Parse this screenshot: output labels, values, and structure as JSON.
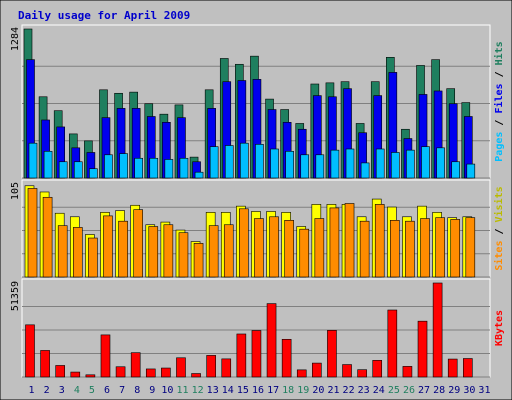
{
  "colors": {
    "background": "#c0c0c0",
    "title": "#0000cc",
    "hits": "#1f7f5f",
    "files": "#0000ee",
    "pages": "#00bfff",
    "visits": "#ffff00",
    "sites": "#ff8c00",
    "kbytes": "#ff0000",
    "weekend_day": "#1f7f5f",
    "weekday": "#000080",
    "grid": "#808080"
  },
  "chart_data": {
    "type": "bar",
    "title": "Daily usage for April 2009",
    "days": [
      "1",
      "2",
      "3",
      "4",
      "5",
      "6",
      "7",
      "8",
      "9",
      "10",
      "11",
      "12",
      "13",
      "14",
      "15",
      "16",
      "17",
      "18",
      "19",
      "20",
      "21",
      "22",
      "23",
      "24",
      "25",
      "26",
      "27",
      "28",
      "29",
      "30",
      "31"
    ],
    "weekend_days": [
      "4",
      "5",
      "11",
      "12",
      "18",
      "19",
      "25",
      "26"
    ],
    "panels": [
      {
        "ymax_label": "1284",
        "ymax": 1284,
        "right_label": {
          "pages": "Pages",
          "sep1": " / ",
          "files": "Files",
          "sep2": " / ",
          "hits": "Hits"
        },
        "series": [
          {
            "name": "Hits",
            "values": [
              1284,
              700,
              580,
              380,
              320,
              760,
              730,
              740,
              640,
              550,
              630,
              180,
              760,
              1030,
              980,
              1050,
              680,
              590,
              470,
              810,
              820,
              830,
              470,
              830,
              1040,
              420,
              970,
              1020,
              770,
              650,
              0
            ]
          },
          {
            "name": "Files",
            "values": [
              1020,
              500,
              440,
              260,
              220,
              520,
              600,
              600,
              530,
              480,
              520,
              140,
              600,
              830,
              840,
              850,
              590,
              480,
              420,
              710,
              700,
              770,
              390,
              710,
              910,
              340,
              720,
              750,
              640,
              530,
              0
            ]
          },
          {
            "name": "Pages",
            "values": [
              300,
              230,
              140,
              140,
              80,
              200,
              210,
              170,
              170,
              160,
              170,
              50,
              270,
              280,
              300,
              290,
              250,
              230,
              200,
              200,
              240,
              250,
              130,
              250,
              220,
              240,
              270,
              260,
              140,
              120,
              0
            ]
          }
        ]
      },
      {
        "ymax_label": "105",
        "ymax": 105,
        "right_label": {
          "sites": "Sites",
          "sep": " / ",
          "visits": "Visits"
        },
        "series": [
          {
            "name": "Visits",
            "values": [
              103,
              96,
              72,
              68,
              48,
              73,
              75,
              81,
              59,
              62,
              53,
              40,
              73,
              73,
              80,
              74,
              74,
              73,
              57,
              82,
              82,
              82,
              68,
              88,
              79,
              68,
              80,
              73,
              67,
              68,
              0
            ]
          },
          {
            "name": "Sites",
            "values": [
              100,
              90,
              58,
              56,
              44,
              69,
              63,
              76,
              57,
              59,
              50,
              38,
              58,
              59,
              77,
              66,
              68,
              64,
              54,
              66,
              78,
              83,
              63,
              82,
              64,
              63,
              66,
              67,
              65,
              67,
              0
            ]
          }
        ]
      },
      {
        "ymax_label": "51359",
        "ymax": 51359,
        "right_label": {
          "kbytes": "KBytes"
        },
        "series": [
          {
            "name": "KBytes",
            "values": [
              28500,
              14500,
              6300,
              2700,
              1200,
              23000,
              5600,
              13300,
              4400,
              4900,
              10500,
              1900,
              11800,
              9900,
              23500,
              25400,
              40100,
              20600,
              3900,
              7600,
              25500,
              6800,
              4000,
              9100,
              36600,
              5800,
              30500,
              51359,
              9800,
              10100,
              0
            ]
          }
        ]
      }
    ]
  }
}
